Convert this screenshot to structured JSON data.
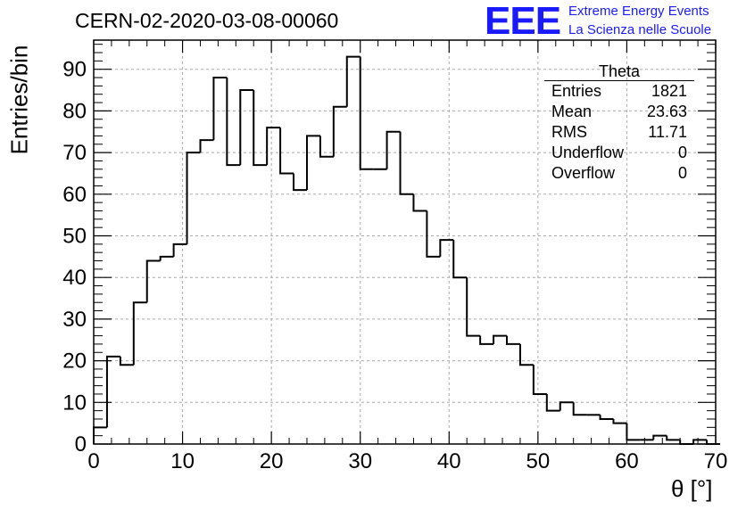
{
  "header": {
    "run_title": "CERN-02-2020-03-08-00060",
    "logo_text": "EEE",
    "logo_line1": "Extreme Energy Events",
    "logo_line2": "La Scienza nelle Scuole",
    "logo_color": "#1a1aff"
  },
  "stats_box": {
    "title": "Theta",
    "rows": [
      {
        "label": "Entries",
        "value": "1821"
      },
      {
        "label": "Mean",
        "value": "23.63"
      },
      {
        "label": "RMS",
        "value": "11.71"
      },
      {
        "label": "Underflow",
        "value": "0"
      },
      {
        "label": "Overflow",
        "value": "0"
      }
    ]
  },
  "chart_data": {
    "type": "histogram",
    "title": "CERN-02-2020-03-08-00060",
    "xlabel": "θ [°]",
    "ylabel": "Entries/bin",
    "xlim": [
      0,
      70
    ],
    "ylim": [
      0,
      97
    ],
    "bin_width": 1.5,
    "bin_start": 0,
    "x_ticks": [
      0,
      10,
      20,
      30,
      40,
      50,
      60,
      70
    ],
    "y_ticks": [
      0,
      10,
      20,
      30,
      40,
      50,
      60,
      70,
      80,
      90
    ],
    "grid": true,
    "line_color": "#000000",
    "values": [
      4,
      21,
      19,
      34,
      44,
      45,
      48,
      70,
      73,
      88,
      67,
      85,
      67,
      76,
      65,
      61,
      74,
      69,
      81,
      93,
      66,
      66,
      75,
      60,
      56,
      45,
      49,
      40,
      26,
      24,
      26,
      24,
      19,
      12,
      8,
      10,
      7,
      7,
      6,
      5,
      1,
      1,
      2,
      1,
      0,
      1,
      0
    ]
  }
}
